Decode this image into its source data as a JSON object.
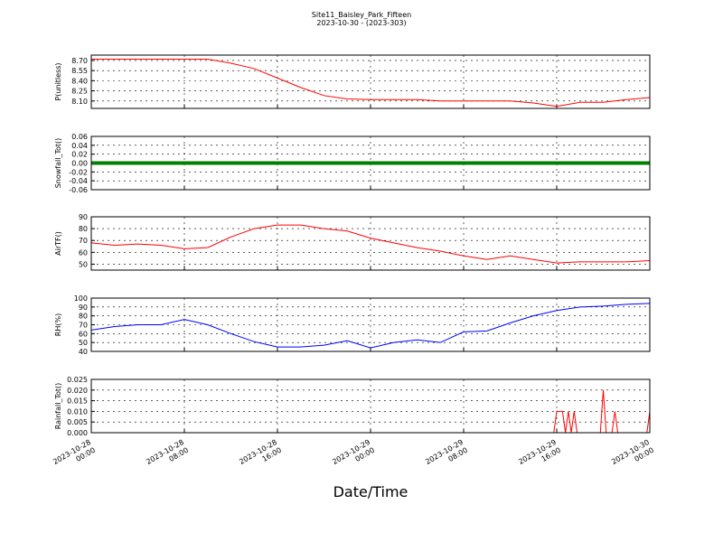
{
  "chart_data": [
    {
      "type": "line",
      "title": "Site11_Baisley_Park_Fifteen",
      "subtitle": "2023-10-30 - (2023-303)",
      "ylabel": "P(unitless)",
      "ylim": [
        7.99,
        8.78
      ],
      "yticks": [
        {
          "value": 8.1,
          "label": "8.10"
        },
        {
          "value": 8.25,
          "label": "8.25"
        },
        {
          "value": 8.4,
          "label": "8.40"
        },
        {
          "value": 8.55,
          "label": "8.55"
        },
        {
          "value": 8.7,
          "label": "8.70"
        }
      ],
      "xlim": [
        "2023-10-28 00:00",
        "2023-10-30 00:00"
      ],
      "grid": true,
      "x": [
        "2023-10-28 00:00",
        "2023-10-28 02:00",
        "2023-10-28 04:00",
        "2023-10-28 06:00",
        "2023-10-28 08:00",
        "2023-10-28 10:00",
        "2023-10-28 12:00",
        "2023-10-28 14:00",
        "2023-10-28 16:00",
        "2023-10-28 18:00",
        "2023-10-28 20:00",
        "2023-10-28 22:00",
        "2023-10-29 00:00",
        "2023-10-29 02:00",
        "2023-10-29 04:00",
        "2023-10-29 06:00",
        "2023-10-29 08:00",
        "2023-10-29 10:00",
        "2023-10-29 12:00",
        "2023-10-29 14:00",
        "2023-10-29 16:00",
        "2023-10-29 18:00",
        "2023-10-29 20:00",
        "2023-10-29 22:00",
        "2023-10-30 00:00"
      ],
      "series": [
        {
          "color": "#ff0000",
          "width": 1,
          "values": [
            8.72,
            8.72,
            8.72,
            8.72,
            8.72,
            8.72,
            8.66,
            8.58,
            8.44,
            8.3,
            8.18,
            8.13,
            8.12,
            8.12,
            8.12,
            8.1,
            8.1,
            8.1,
            8.1,
            8.07,
            8.02,
            8.08,
            8.08,
            8.12,
            8.15
          ]
        }
      ]
    },
    {
      "type": "line",
      "ylabel": "Snowfall_Tot()",
      "ylim": [
        -0.06,
        0.06
      ],
      "yticks": [
        {
          "value": -0.06,
          "label": "-0.06"
        },
        {
          "value": -0.04,
          "label": "-0.04"
        },
        {
          "value": -0.02,
          "label": "-0.02"
        },
        {
          "value": 0,
          "label": "0.00"
        },
        {
          "value": 0.02,
          "label": "0.02"
        },
        {
          "value": 0.04,
          "label": "0.04"
        },
        {
          "value": 0.06,
          "label": "0.06"
        }
      ],
      "xlim": [
        "2023-10-28 00:00",
        "2023-10-30 00:00"
      ],
      "grid": true,
      "x": [
        "2023-10-28 00:00",
        "2023-10-28 02:00",
        "2023-10-28 04:00",
        "2023-10-28 06:00",
        "2023-10-28 08:00",
        "2023-10-28 10:00",
        "2023-10-28 12:00",
        "2023-10-28 14:00",
        "2023-10-28 16:00",
        "2023-10-28 18:00",
        "2023-10-28 20:00",
        "2023-10-28 22:00",
        "2023-10-29 00:00",
        "2023-10-29 02:00",
        "2023-10-29 04:00",
        "2023-10-29 06:00",
        "2023-10-29 08:00",
        "2023-10-29 10:00",
        "2023-10-29 12:00",
        "2023-10-29 14:00",
        "2023-10-29 16:00",
        "2023-10-29 18:00",
        "2023-10-29 20:00",
        "2023-10-29 22:00",
        "2023-10-30 00:00"
      ],
      "series": [
        {
          "color": "#008000",
          "width": 4,
          "values": [
            0,
            0,
            0,
            0,
            0,
            0,
            0,
            0,
            0,
            0,
            0,
            0,
            0,
            0,
            0,
            0,
            0,
            0,
            0,
            0,
            0,
            0,
            0,
            0,
            0
          ]
        }
      ]
    },
    {
      "type": "line",
      "ylabel": "AirTF()",
      "ylim": [
        45,
        90
      ],
      "yticks": [
        50,
        60,
        70,
        80,
        90
      ],
      "xlim": [
        "2023-10-28 00:00",
        "2023-10-30 00:00"
      ],
      "grid": true,
      "x": [
        "2023-10-28 00:00",
        "2023-10-28 02:00",
        "2023-10-28 04:00",
        "2023-10-28 06:00",
        "2023-10-28 08:00",
        "2023-10-28 10:00",
        "2023-10-28 12:00",
        "2023-10-28 14:00",
        "2023-10-28 16:00",
        "2023-10-28 18:00",
        "2023-10-28 20:00",
        "2023-10-28 22:00",
        "2023-10-29 00:00",
        "2023-10-29 02:00",
        "2023-10-29 04:00",
        "2023-10-29 06:00",
        "2023-10-29 08:00",
        "2023-10-29 10:00",
        "2023-10-29 12:00",
        "2023-10-29 14:00",
        "2023-10-29 16:00",
        "2023-10-29 18:00",
        "2023-10-29 20:00",
        "2023-10-29 22:00",
        "2023-10-30 00:00"
      ],
      "series": [
        {
          "color": "#ff0000",
          "width": 1,
          "values": [
            68,
            66,
            67,
            66,
            63,
            64,
            73,
            80,
            83,
            83,
            80,
            78,
            72,
            68,
            64,
            61,
            57,
            54,
            57,
            54,
            51,
            52,
            52,
            52,
            53
          ]
        }
      ]
    },
    {
      "type": "line",
      "ylabel": "RH(%)",
      "ylim": [
        40,
        100
      ],
      "yticks": [
        40,
        50,
        60,
        70,
        80,
        90,
        100
      ],
      "xlim": [
        "2023-10-28 00:00",
        "2023-10-30 00:00"
      ],
      "grid": true,
      "x": [
        "2023-10-28 00:00",
        "2023-10-28 02:00",
        "2023-10-28 04:00",
        "2023-10-28 06:00",
        "2023-10-28 08:00",
        "2023-10-28 10:00",
        "2023-10-28 12:00",
        "2023-10-28 14:00",
        "2023-10-28 16:00",
        "2023-10-28 18:00",
        "2023-10-28 20:00",
        "2023-10-28 22:00",
        "2023-10-29 00:00",
        "2023-10-29 02:00",
        "2023-10-29 04:00",
        "2023-10-29 06:00",
        "2023-10-29 08:00",
        "2023-10-29 10:00",
        "2023-10-29 12:00",
        "2023-10-29 14:00",
        "2023-10-29 16:00",
        "2023-10-29 18:00",
        "2023-10-29 20:00",
        "2023-10-29 22:00",
        "2023-10-30 00:00"
      ],
      "series": [
        {
          "color": "#0000ff",
          "width": 1,
          "values": [
            64,
            68,
            70,
            70,
            76,
            70,
            60,
            51,
            45,
            45,
            47,
            52,
            44,
            50,
            53,
            50,
            62,
            63,
            72,
            80,
            86,
            90,
            91,
            93,
            94
          ]
        }
      ]
    },
    {
      "type": "line",
      "ylabel": "Rainfall_Tot()",
      "xlabel": "Date/Time",
      "ylim": [
        0,
        0.025
      ],
      "yticks": [
        {
          "value": 0,
          "label": "0.000"
        },
        {
          "value": 0.005,
          "label": "0.005"
        },
        {
          "value": 0.01,
          "label": "0.010"
        },
        {
          "value": 0.015,
          "label": "0.015"
        },
        {
          "value": 0.02,
          "label": "0.020"
        },
        {
          "value": 0.025,
          "label": "0.025"
        }
      ],
      "xlim": [
        "2023-10-28 00:00",
        "2023-10-30 00:00"
      ],
      "grid": true,
      "xticks": [
        "2023-10-28 00:00",
        "2023-10-28 08:00",
        "2023-10-28 16:00",
        "2023-10-29 00:00",
        "2023-10-29 08:00",
        "2023-10-29 16:00",
        "2023-10-30 00:00"
      ],
      "x": [
        "2023-10-28 00:00",
        "2023-10-29 15:45",
        "2023-10-29 16:00",
        "2023-10-29 16:30",
        "2023-10-29 16:45",
        "2023-10-29 17:00",
        "2023-10-29 17:15",
        "2023-10-29 17:30",
        "2023-10-29 17:45",
        "2023-10-29 19:45",
        "2023-10-29 20:00",
        "2023-10-29 20:15",
        "2023-10-29 20:45",
        "2023-10-29 21:00",
        "2023-10-29 21:15",
        "2023-10-29 23:45",
        "2023-10-30 00:00"
      ],
      "series": [
        {
          "color": "#ff0000",
          "width": 1,
          "values": [
            0,
            0,
            0.01,
            0.01,
            0,
            0.01,
            0,
            0.01,
            0,
            0,
            0.02,
            0,
            0,
            0.01,
            0,
            0,
            0.01
          ]
        }
      ]
    }
  ]
}
